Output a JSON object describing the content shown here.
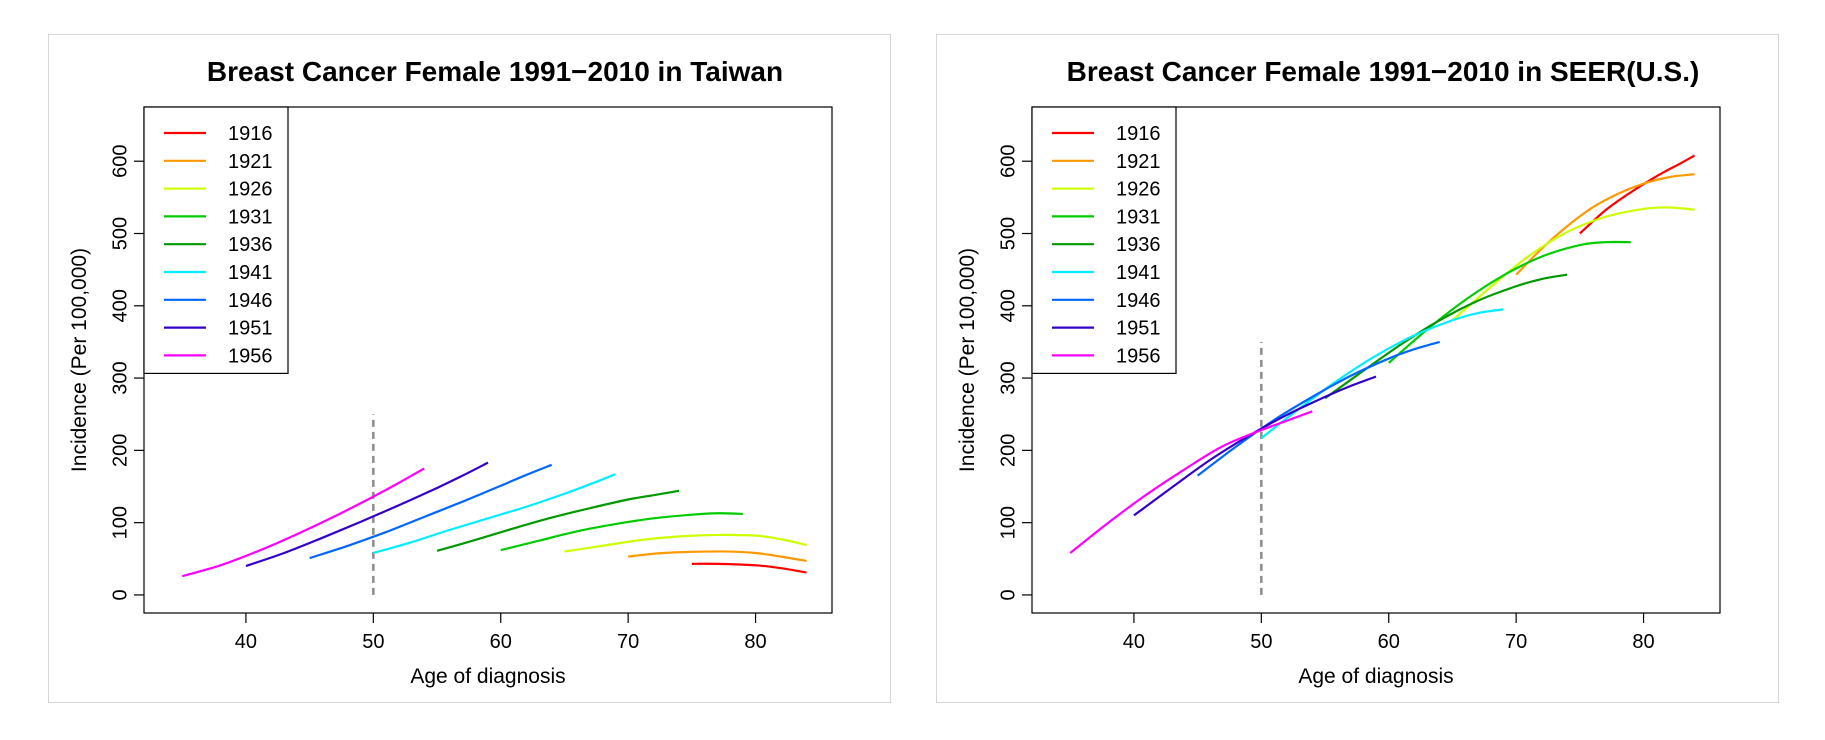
{
  "chart_data": [
    {
      "type": "line",
      "title": "Breast Cancer Female 1991−2010 in Taiwan",
      "xlabel": "Age of diagnosis",
      "ylabel": "Incidence (Per 100,000)",
      "xlim": [
        32,
        86
      ],
      "ylim": [
        -25,
        675
      ],
      "xticks": [
        40,
        50,
        60,
        70,
        80
      ],
      "yticks": [
        0,
        100,
        200,
        300,
        400,
        500,
        600
      ],
      "legend_position": "top-left",
      "reference_line": {
        "x": 50,
        "y_from": 0,
        "y_to": 250,
        "style": "dashed",
        "color": "#8c8c8c"
      },
      "series": [
        {
          "name": "1916",
          "color": "#ff0000",
          "x": [
            75,
            77,
            80,
            82,
            84
          ],
          "y": [
            43,
            43,
            41,
            37,
            31
          ]
        },
        {
          "name": "1921",
          "color": "#ff9900",
          "x": [
            70,
            72,
            74,
            76,
            78,
            80,
            82,
            84
          ],
          "y": [
            53,
            57,
            59,
            60,
            60,
            58,
            53,
            47
          ]
        },
        {
          "name": "1926",
          "color": "#ccff00",
          "x": [
            65,
            68,
            71,
            74,
            77,
            80,
            82,
            84
          ],
          "y": [
            60,
            68,
            76,
            81,
            83,
            82,
            77,
            69
          ]
        },
        {
          "name": "1931",
          "color": "#00cc00",
          "x": [
            60,
            63,
            66,
            69,
            72,
            75,
            77,
            79
          ],
          "y": [
            62,
            75,
            88,
            98,
            106,
            111,
            113,
            112
          ]
        },
        {
          "name": "1936",
          "color": "#009900",
          "x": [
            55,
            58,
            61,
            64,
            67,
            70,
            72,
            74
          ],
          "y": [
            61,
            76,
            92,
            107,
            120,
            132,
            138,
            144
          ]
        },
        {
          "name": "1941",
          "color": "#00eeff",
          "x": [
            50,
            53,
            56,
            59,
            62,
            65,
            67,
            69
          ],
          "y": [
            58,
            73,
            90,
            106,
            122,
            140,
            153,
            167
          ]
        },
        {
          "name": "1946",
          "color": "#0066ff",
          "x": [
            45,
            48,
            51,
            54,
            57,
            60,
            62,
            64
          ],
          "y": [
            51,
            68,
            87,
            108,
            129,
            151,
            166,
            180
          ]
        },
        {
          "name": "1951",
          "color": "#3300cc",
          "x": [
            40,
            43,
            46,
            49,
            52,
            55,
            57,
            59
          ],
          "y": [
            40,
            58,
            79,
            101,
            124,
            148,
            165,
            183
          ]
        },
        {
          "name": "1956",
          "color": "#ff00ff",
          "x": [
            35,
            38,
            41,
            44,
            47,
            50,
            52,
            54
          ],
          "y": [
            26,
            41,
            61,
            84,
            109,
            136,
            155,
            175
          ]
        }
      ]
    },
    {
      "type": "line",
      "title": "Breast Cancer Female 1991−2010 in SEER(U.S.)",
      "xlabel": "Age of diagnosis",
      "ylabel": "Incidence (Per 100,000)",
      "xlim": [
        32,
        86
      ],
      "ylim": [
        -25,
        675
      ],
      "xticks": [
        40,
        50,
        60,
        70,
        80
      ],
      "yticks": [
        0,
        100,
        200,
        300,
        400,
        500,
        600
      ],
      "legend_position": "top-left",
      "reference_line": {
        "x": 50,
        "y_from": 0,
        "y_to": 350,
        "style": "dashed",
        "color": "#8c8c8c"
      },
      "series": [
        {
          "name": "1916",
          "color": "#ff0000",
          "x": [
            75,
            77,
            79,
            81,
            83,
            84
          ],
          "y": [
            500,
            532,
            557,
            579,
            598,
            608
          ]
        },
        {
          "name": "1921",
          "color": "#ff9900",
          "x": [
            70,
            72,
            74,
            76,
            78,
            80,
            82,
            84
          ],
          "y": [
            443,
            479,
            510,
            536,
            555,
            569,
            578,
            582
          ]
        },
        {
          "name": "1926",
          "color": "#ccff00",
          "x": [
            65,
            68,
            71,
            74,
            77,
            80,
            82,
            84
          ],
          "y": [
            380,
            426,
            469,
            502,
            523,
            534,
            536,
            533
          ]
        },
        {
          "name": "1931",
          "color": "#00cc00",
          "x": [
            60,
            63,
            66,
            69,
            72,
            75,
            77,
            79
          ],
          "y": [
            321,
            367,
            408,
            442,
            468,
            484,
            488,
            488
          ]
        },
        {
          "name": "1936",
          "color": "#009900",
          "x": [
            55,
            58,
            61,
            64,
            67,
            70,
            72,
            74
          ],
          "y": [
            272,
            310,
            347,
            380,
            407,
            427,
            437,
            443
          ]
        },
        {
          "name": "1941",
          "color": "#00eeff",
          "x": [
            50,
            53,
            56,
            59,
            62,
            65,
            67,
            69
          ],
          "y": [
            217,
            258,
            297,
            331,
            359,
            380,
            390,
            395
          ]
        },
        {
          "name": "1946",
          "color": "#0066ff",
          "x": [
            45,
            48,
            51,
            54,
            57,
            60,
            62,
            64
          ],
          "y": [
            165,
            205,
            242,
            274,
            303,
            327,
            340,
            350
          ]
        },
        {
          "name": "1951",
          "color": "#3300cc",
          "x": [
            40,
            43,
            46,
            49,
            52,
            55,
            57,
            59
          ],
          "y": [
            110,
            149,
            187,
            220,
            249,
            274,
            289,
            302
          ]
        },
        {
          "name": "1956",
          "color": "#ff00ff",
          "x": [
            35,
            38,
            41,
            44,
            47,
            50,
            52,
            54
          ],
          "y": [
            58,
            100,
            139,
            174,
            206,
            228,
            241,
            254
          ]
        }
      ]
    }
  ]
}
